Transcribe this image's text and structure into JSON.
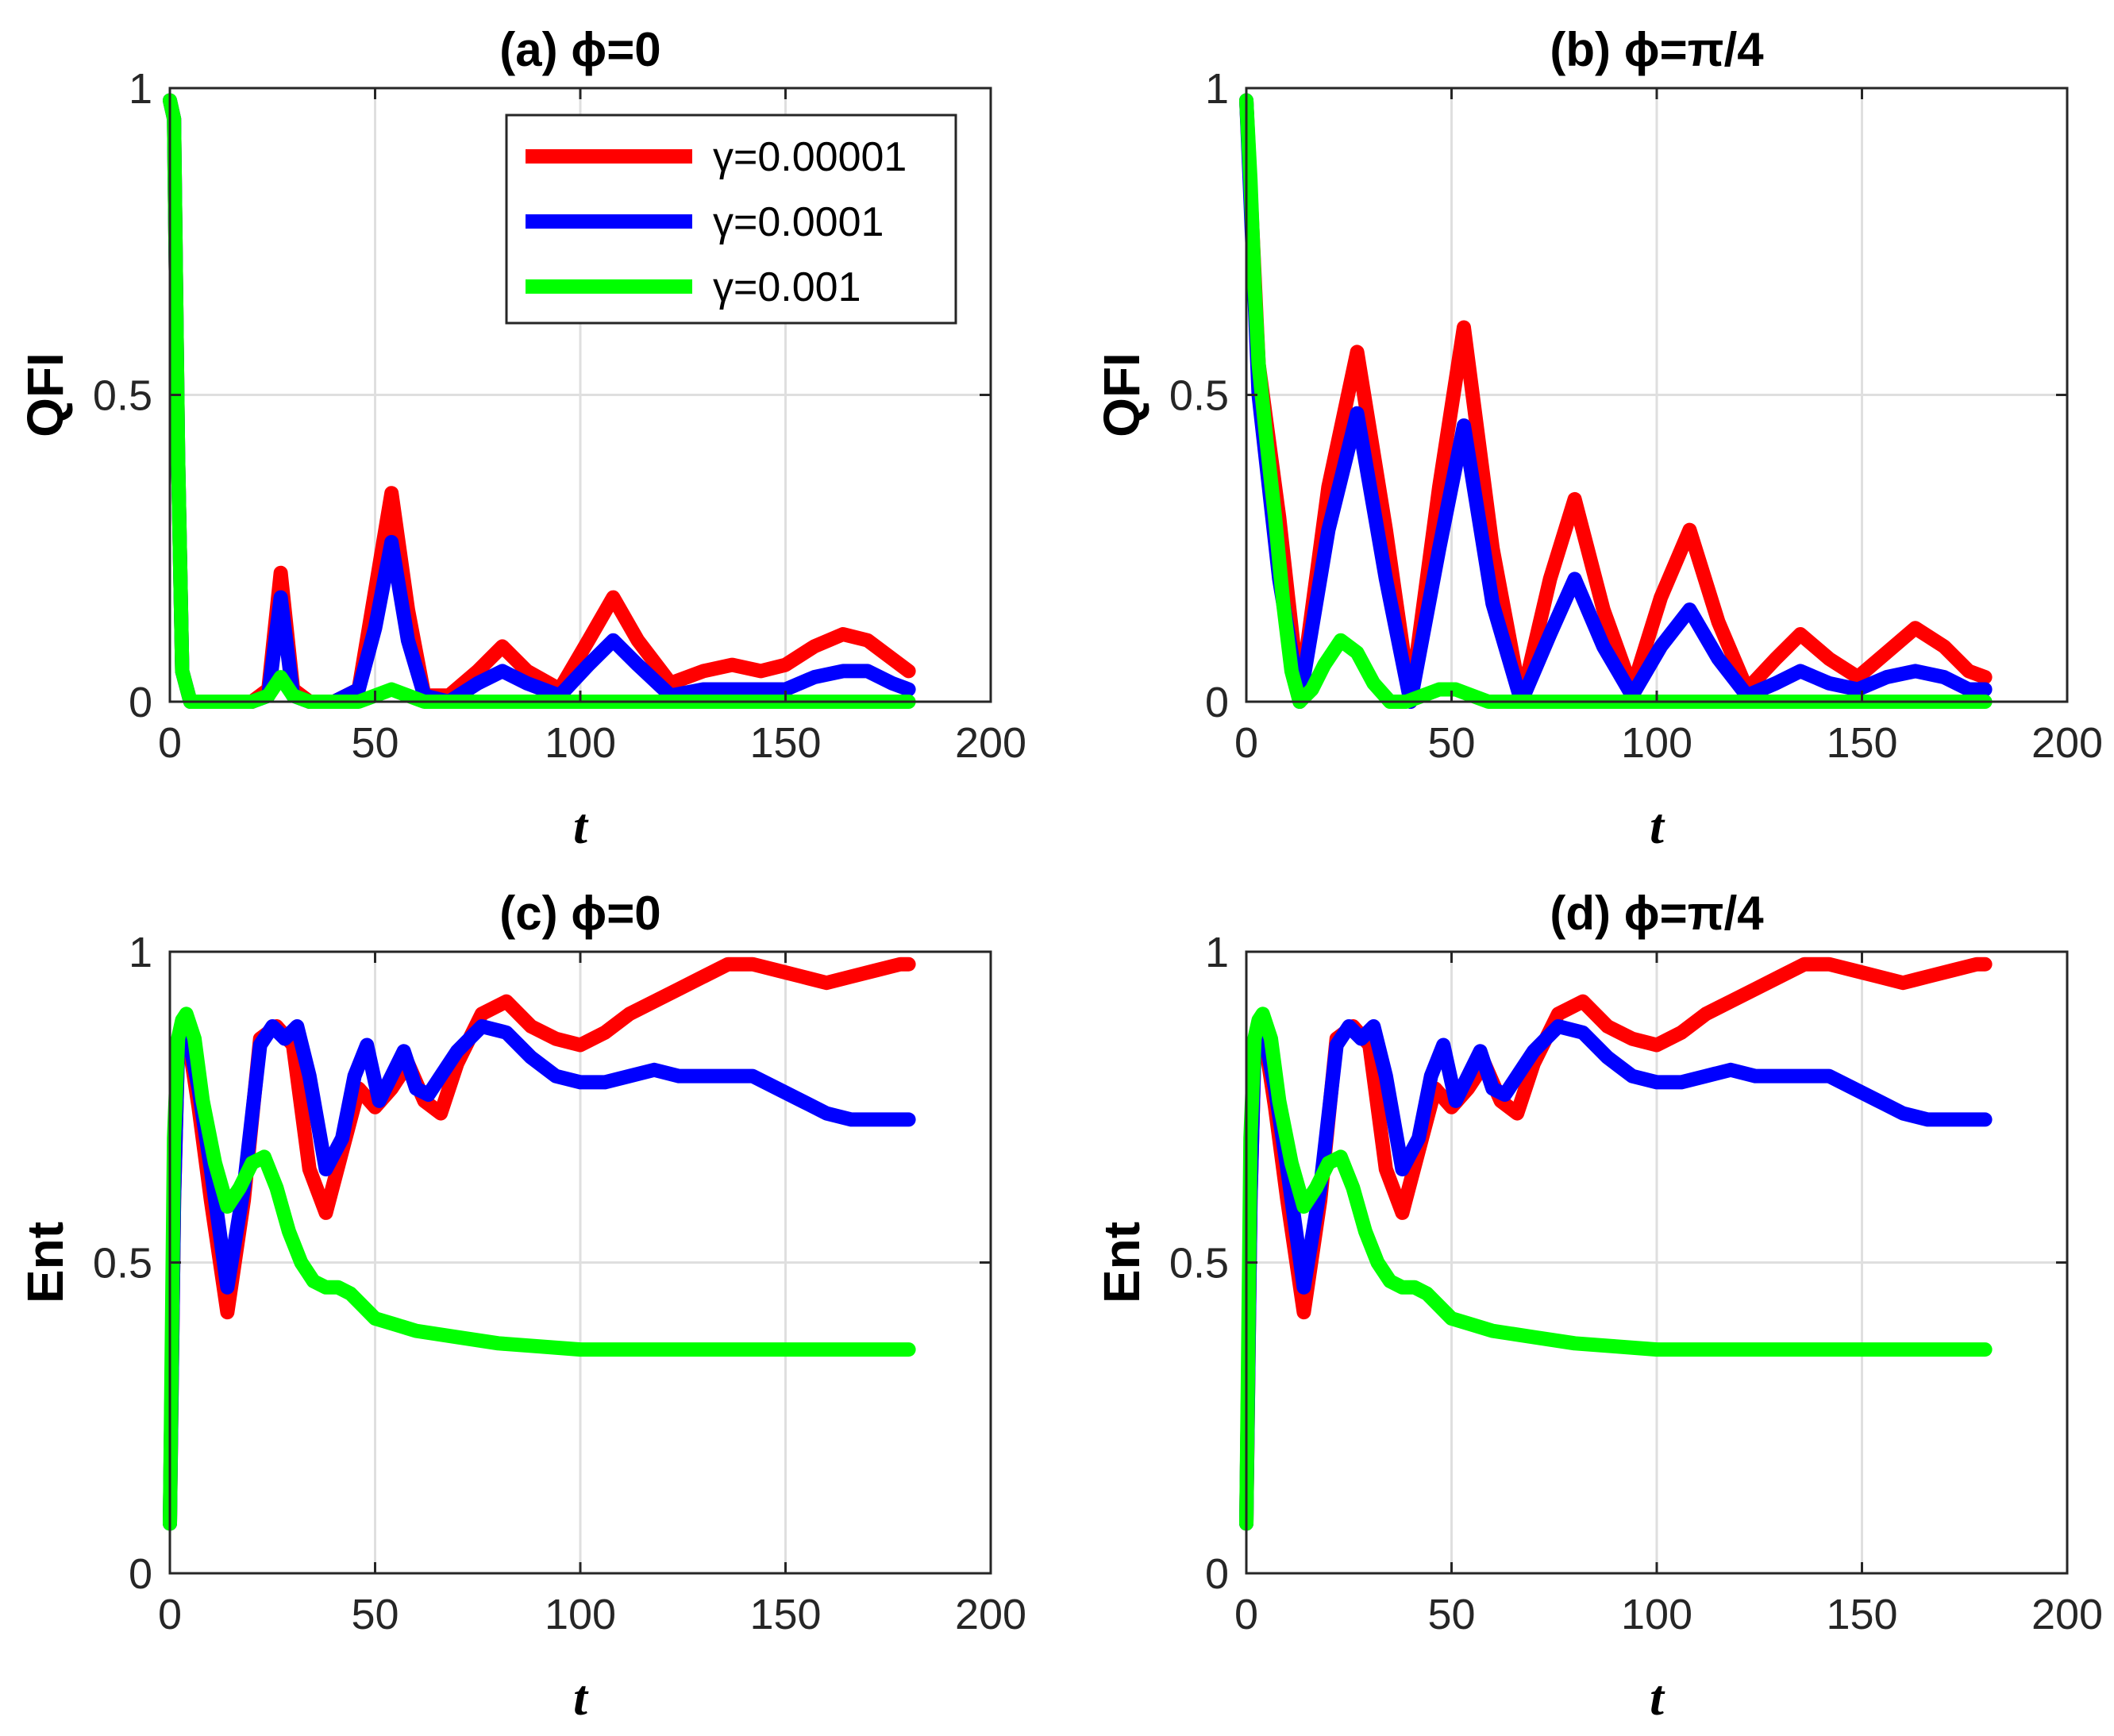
{
  "chart_data": [
    {
      "type": "line",
      "title": "(a) ϕ=0",
      "xlabel": "t",
      "ylabel": "QFI",
      "xlim": [
        0,
        200
      ],
      "ylim": [
        0,
        1
      ],
      "xticks": [
        "0",
        "50",
        "100",
        "150",
        "200"
      ],
      "yticks": [
        "0",
        "0.5",
        "1"
      ],
      "grid": true,
      "legend": "top-right",
      "series": [
        {
          "name": "γ=0.00001",
          "color": "#ff0000",
          "x": [
            0,
            1,
            2,
            3,
            5,
            10,
            20,
            24,
            27,
            30,
            34,
            40,
            46,
            50,
            54,
            58,
            62,
            68,
            75,
            81,
            87,
            95,
            102,
            108,
            114,
            122,
            130,
            137,
            144,
            150,
            157,
            164,
            170,
            176,
            180
          ],
          "y": [
            0.98,
            0.95,
            0.4,
            0.05,
            0.0,
            0.0,
            0.0,
            0.02,
            0.21,
            0.02,
            0.0,
            0.0,
            0.02,
            0.18,
            0.34,
            0.15,
            0.01,
            0.01,
            0.05,
            0.09,
            0.05,
            0.02,
            0.1,
            0.17,
            0.1,
            0.03,
            0.05,
            0.06,
            0.05,
            0.06,
            0.09,
            0.11,
            0.1,
            0.07,
            0.05
          ]
        },
        {
          "name": "γ=0.0001",
          "color": "#0000ff",
          "x": [
            0,
            1,
            2,
            3,
            5,
            10,
            20,
            24,
            27,
            30,
            34,
            40,
            46,
            50,
            54,
            58,
            62,
            68,
            75,
            81,
            87,
            95,
            102,
            108,
            114,
            122,
            130,
            137,
            144,
            150,
            157,
            164,
            170,
            176,
            180
          ],
          "y": [
            0.98,
            0.95,
            0.4,
            0.05,
            0.0,
            0.0,
            0.0,
            0.01,
            0.17,
            0.01,
            0.0,
            0.0,
            0.02,
            0.12,
            0.26,
            0.1,
            0.01,
            0.0,
            0.03,
            0.05,
            0.03,
            0.01,
            0.06,
            0.1,
            0.06,
            0.01,
            0.02,
            0.02,
            0.02,
            0.02,
            0.04,
            0.05,
            0.05,
            0.03,
            0.02
          ]
        },
        {
          "name": "γ=0.001",
          "color": "#00ff00",
          "x": [
            0,
            1,
            2,
            3,
            5,
            10,
            20,
            24,
            27,
            30,
            34,
            40,
            46,
            50,
            54,
            58,
            62,
            70,
            90,
            120,
            150,
            180
          ],
          "y": [
            0.98,
            0.95,
            0.4,
            0.05,
            0.0,
            0.0,
            0.0,
            0.01,
            0.04,
            0.01,
            0.0,
            0.0,
            0.0,
            0.01,
            0.02,
            0.01,
            0.0,
            0.0,
            0.0,
            0.0,
            0.0,
            0.0
          ]
        }
      ]
    },
    {
      "type": "line",
      "title": "(b) ϕ=π/4",
      "xlabel": "t",
      "ylabel": "QFI",
      "xlim": [
        0,
        200
      ],
      "ylim": [
        0,
        1
      ],
      "xticks": [
        "0",
        "50",
        "100",
        "150",
        "200"
      ],
      "yticks": [
        "0",
        "0.5",
        "1"
      ],
      "grid": true,
      "series": [
        {
          "name": "γ=0.00001",
          "color": "#ff0000",
          "x": [
            0,
            3,
            8,
            13,
            20,
            27,
            34,
            40,
            47,
            53,
            60,
            67,
            74,
            80,
            87,
            94,
            101,
            108,
            115,
            122,
            129,
            135,
            142,
            149,
            156,
            163,
            170,
            176,
            180
          ],
          "y": [
            0.98,
            0.55,
            0.3,
            0.0,
            0.35,
            0.57,
            0.28,
            0.0,
            0.35,
            0.61,
            0.25,
            0.0,
            0.2,
            0.33,
            0.15,
            0.02,
            0.17,
            0.28,
            0.13,
            0.02,
            0.07,
            0.11,
            0.07,
            0.04,
            0.08,
            0.12,
            0.09,
            0.05,
            0.04
          ]
        },
        {
          "name": "γ=0.0001",
          "color": "#0000ff",
          "x": [
            0,
            3,
            8,
            13,
            20,
            27,
            34,
            40,
            47,
            53,
            60,
            67,
            74,
            80,
            87,
            94,
            101,
            108,
            115,
            122,
            129,
            135,
            142,
            149,
            156,
            163,
            170,
            176,
            180
          ],
          "y": [
            0.98,
            0.5,
            0.2,
            0.0,
            0.28,
            0.47,
            0.2,
            0.0,
            0.25,
            0.45,
            0.16,
            0.0,
            0.11,
            0.2,
            0.09,
            0.01,
            0.09,
            0.15,
            0.07,
            0.01,
            0.03,
            0.05,
            0.03,
            0.02,
            0.04,
            0.05,
            0.04,
            0.02,
            0.02
          ]
        },
        {
          "name": "γ=0.001",
          "color": "#00ff00",
          "x": [
            0,
            1,
            2,
            3,
            5,
            7,
            9,
            11,
            13,
            16,
            19,
            23,
            27,
            31,
            35,
            39,
            43,
            47,
            51,
            55,
            59,
            70,
            90,
            120,
            150,
            180
          ],
          "y": [
            0.98,
            0.85,
            0.68,
            0.55,
            0.42,
            0.3,
            0.16,
            0.05,
            0.0,
            0.02,
            0.06,
            0.1,
            0.08,
            0.03,
            0.0,
            0.0,
            0.01,
            0.02,
            0.02,
            0.01,
            0.0,
            0.0,
            0.0,
            0.0,
            0.0,
            0.0
          ]
        }
      ]
    },
    {
      "type": "line",
      "title": "(c) ϕ=0",
      "xlabel": "t",
      "ylabel": "Ent",
      "xlim": [
        0,
        200
      ],
      "ylim": [
        0,
        1
      ],
      "xticks": [
        "0",
        "50",
        "100",
        "150",
        "200"
      ],
      "yticks": [
        "0",
        "0.5",
        "1"
      ],
      "grid": true,
      "series": [
        {
          "name": "γ=0.00001",
          "color": "#ff0000",
          "x": [
            0,
            1,
            2,
            4,
            7,
            10,
            14,
            18,
            22,
            26,
            30,
            34,
            38,
            42,
            46,
            50,
            54,
            58,
            62,
            66,
            70,
            76,
            82,
            88,
            94,
            100,
            106,
            112,
            118,
            124,
            130,
            136,
            142,
            148,
            154,
            160,
            166,
            172,
            178,
            180
          ],
          "y": [
            0.08,
            0.6,
            0.85,
            0.88,
            0.75,
            0.6,
            0.42,
            0.6,
            0.86,
            0.88,
            0.85,
            0.65,
            0.58,
            0.68,
            0.78,
            0.75,
            0.78,
            0.82,
            0.76,
            0.74,
            0.82,
            0.9,
            0.92,
            0.88,
            0.86,
            0.85,
            0.87,
            0.9,
            0.92,
            0.94,
            0.96,
            0.98,
            0.98,
            0.97,
            0.96,
            0.95,
            0.96,
            0.97,
            0.98,
            0.98
          ]
        },
        {
          "name": "γ=0.0001",
          "color": "#0000ff",
          "x": [
            0,
            1,
            2,
            4,
            7,
            10,
            14,
            18,
            22,
            25,
            28,
            31,
            34,
            38,
            42,
            45,
            48,
            51,
            54,
            57,
            60,
            63,
            66,
            70,
            76,
            82,
            88,
            94,
            100,
            106,
            112,
            118,
            124,
            130,
            136,
            142,
            148,
            154,
            160,
            166,
            172,
            178,
            180
          ],
          "y": [
            0.08,
            0.6,
            0.85,
            0.88,
            0.78,
            0.65,
            0.46,
            0.62,
            0.85,
            0.88,
            0.86,
            0.88,
            0.8,
            0.65,
            0.7,
            0.8,
            0.85,
            0.76,
            0.8,
            0.84,
            0.78,
            0.77,
            0.8,
            0.84,
            0.88,
            0.87,
            0.83,
            0.8,
            0.79,
            0.79,
            0.8,
            0.81,
            0.8,
            0.8,
            0.8,
            0.8,
            0.78,
            0.76,
            0.74,
            0.73,
            0.73,
            0.73,
            0.73
          ]
        },
        {
          "name": "γ=0.001",
          "color": "#00ff00",
          "x": [
            0,
            1,
            2,
            3,
            4,
            6,
            8,
            11,
            14,
            17,
            20,
            23,
            26,
            29,
            32,
            35,
            38,
            41,
            44,
            47,
            50,
            55,
            60,
            70,
            80,
            90,
            100,
            120,
            140,
            160,
            180
          ],
          "y": [
            0.08,
            0.7,
            0.86,
            0.89,
            0.9,
            0.86,
            0.76,
            0.66,
            0.59,
            0.62,
            0.66,
            0.67,
            0.62,
            0.55,
            0.5,
            0.47,
            0.46,
            0.46,
            0.45,
            0.43,
            0.41,
            0.4,
            0.39,
            0.38,
            0.37,
            0.365,
            0.36,
            0.36,
            0.36,
            0.36,
            0.36
          ]
        }
      ]
    },
    {
      "type": "line",
      "title": "(d) ϕ=π/4",
      "xlabel": "t",
      "ylabel": "Ent",
      "xlim": [
        0,
        200
      ],
      "ylim": [
        0,
        1
      ],
      "xticks": [
        "0",
        "50",
        "100",
        "150",
        "200"
      ],
      "yticks": [
        "0",
        "0.5",
        "1"
      ],
      "grid": true,
      "series": [
        {
          "name": "γ=0.00001",
          "color": "#ff0000",
          "x": [
            0,
            1,
            2,
            4,
            7,
            10,
            14,
            18,
            22,
            26,
            30,
            34,
            38,
            42,
            46,
            50,
            54,
            58,
            62,
            66,
            70,
            76,
            82,
            88,
            94,
            100,
            106,
            112,
            118,
            124,
            130,
            136,
            142,
            148,
            154,
            160,
            166,
            172,
            178,
            180
          ],
          "y": [
            0.08,
            0.6,
            0.85,
            0.88,
            0.75,
            0.6,
            0.42,
            0.6,
            0.86,
            0.88,
            0.85,
            0.65,
            0.58,
            0.68,
            0.78,
            0.75,
            0.78,
            0.82,
            0.76,
            0.74,
            0.82,
            0.9,
            0.92,
            0.88,
            0.86,
            0.85,
            0.87,
            0.9,
            0.92,
            0.94,
            0.96,
            0.98,
            0.98,
            0.97,
            0.96,
            0.95,
            0.96,
            0.97,
            0.98,
            0.98
          ]
        },
        {
          "name": "γ=0.0001",
          "color": "#0000ff",
          "x": [
            0,
            1,
            2,
            4,
            7,
            10,
            14,
            18,
            22,
            25,
            28,
            31,
            34,
            38,
            42,
            45,
            48,
            51,
            54,
            57,
            60,
            63,
            66,
            70,
            76,
            82,
            88,
            94,
            100,
            106,
            112,
            118,
            124,
            130,
            136,
            142,
            148,
            154,
            160,
            166,
            172,
            178,
            180
          ],
          "y": [
            0.08,
            0.6,
            0.85,
            0.88,
            0.78,
            0.65,
            0.46,
            0.62,
            0.85,
            0.88,
            0.86,
            0.88,
            0.8,
            0.65,
            0.7,
            0.8,
            0.85,
            0.76,
            0.8,
            0.84,
            0.78,
            0.77,
            0.8,
            0.84,
            0.88,
            0.87,
            0.83,
            0.8,
            0.79,
            0.79,
            0.8,
            0.81,
            0.8,
            0.8,
            0.8,
            0.8,
            0.78,
            0.76,
            0.74,
            0.73,
            0.73,
            0.73,
            0.73
          ]
        },
        {
          "name": "γ=0.001",
          "color": "#00ff00",
          "x": [
            0,
            1,
            2,
            3,
            4,
            6,
            8,
            11,
            14,
            17,
            20,
            23,
            26,
            29,
            32,
            35,
            38,
            41,
            44,
            47,
            50,
            55,
            60,
            70,
            80,
            90,
            100,
            120,
            140,
            160,
            180
          ],
          "y": [
            0.08,
            0.7,
            0.86,
            0.89,
            0.9,
            0.86,
            0.76,
            0.66,
            0.59,
            0.62,
            0.66,
            0.67,
            0.62,
            0.55,
            0.5,
            0.47,
            0.46,
            0.46,
            0.45,
            0.43,
            0.41,
            0.4,
            0.39,
            0.38,
            0.37,
            0.365,
            0.36,
            0.36,
            0.36,
            0.36,
            0.36
          ]
        }
      ]
    }
  ]
}
